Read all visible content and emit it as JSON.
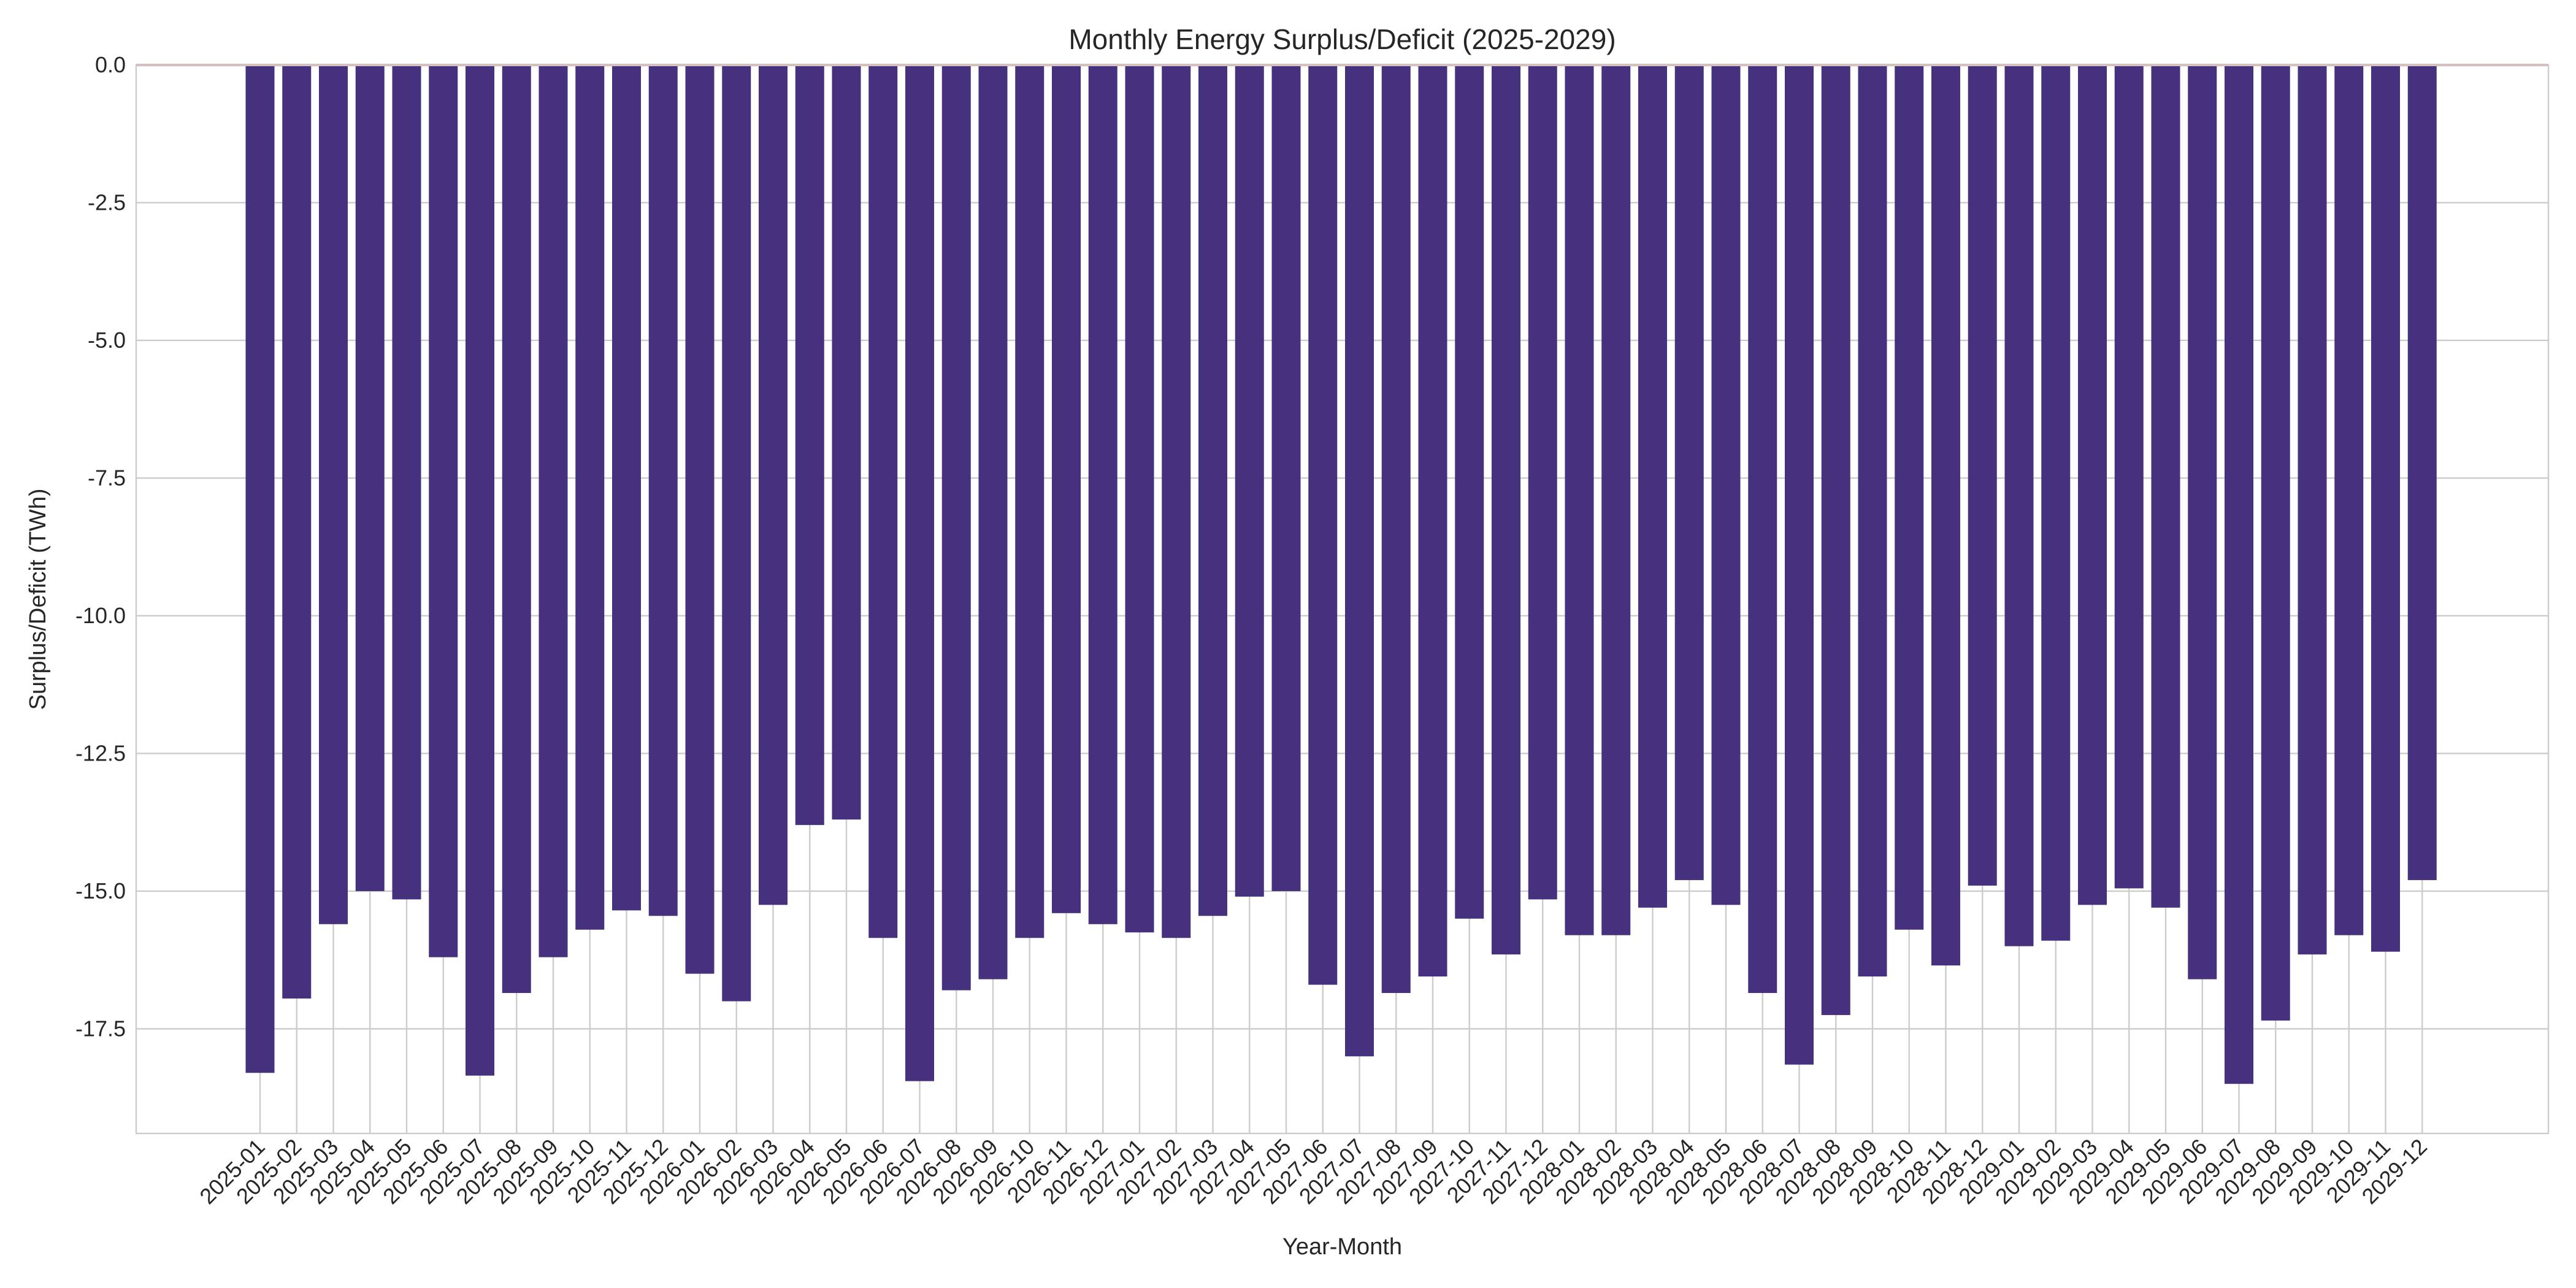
{
  "chart_data": {
    "type": "bar",
    "title": "Monthly Energy Surplus/Deficit (2025-2029)",
    "xlabel": "Year-Month",
    "ylabel": "Surplus/Deficit (TWh)",
    "ylim": [
      -19.4,
      0
    ],
    "yticks": [
      0.0,
      -2.5,
      -5.0,
      -7.5,
      -10.0,
      -12.5,
      -15.0,
      -17.5
    ],
    "ytick_labels": [
      "0.0",
      "-2.5",
      "-5.0",
      "-7.5",
      "-10.0",
      "-12.5",
      "-15.0",
      "-17.5"
    ],
    "grid": true,
    "reference_line": 0,
    "colors": {
      "bar": "#45317e",
      "reference_line": "#dba8a8",
      "grid": "#cccccc",
      "text": "#262626"
    },
    "categories": [
      "2025-01",
      "2025-02",
      "2025-03",
      "2025-04",
      "2025-05",
      "2025-06",
      "2025-07",
      "2025-08",
      "2025-09",
      "2025-10",
      "2025-11",
      "2025-12",
      "2026-01",
      "2026-02",
      "2026-03",
      "2026-04",
      "2026-05",
      "2026-06",
      "2026-07",
      "2026-08",
      "2026-09",
      "2026-10",
      "2026-11",
      "2026-12",
      "2027-01",
      "2027-02",
      "2027-03",
      "2027-04",
      "2027-05",
      "2027-06",
      "2027-07",
      "2027-08",
      "2027-09",
      "2027-10",
      "2027-11",
      "2027-12",
      "2028-01",
      "2028-02",
      "2028-03",
      "2028-04",
      "2028-05",
      "2028-06",
      "2028-07",
      "2028-08",
      "2028-09",
      "2028-10",
      "2028-11",
      "2028-12",
      "2029-01",
      "2029-02",
      "2029-03",
      "2029-04",
      "2029-05",
      "2029-06",
      "2029-07",
      "2029-08",
      "2029-09",
      "2029-10",
      "2029-11",
      "2029-12"
    ],
    "values": [
      -18.3,
      -16.95,
      -15.6,
      -15.0,
      -15.15,
      -16.2,
      -18.35,
      -16.85,
      -16.2,
      -15.7,
      -15.35,
      -15.45,
      -16.5,
      -17.0,
      -15.25,
      -13.8,
      -13.7,
      -15.85,
      -18.45,
      -16.8,
      -16.6,
      -15.85,
      -15.4,
      -15.6,
      -15.75,
      -15.85,
      -15.45,
      -15.1,
      -15.0,
      -16.7,
      -18.0,
      -16.85,
      -16.55,
      -15.5,
      -16.15,
      -15.15,
      -15.8,
      -15.8,
      -15.3,
      -14.8,
      -15.25,
      -16.85,
      -18.15,
      -17.25,
      -16.55,
      -15.7,
      -16.35,
      -14.9,
      -16.0,
      -15.9,
      -15.25,
      -14.95,
      -15.3,
      -16.6,
      -18.5,
      -17.35,
      -16.15,
      -15.8,
      -16.1,
      -14.8
    ]
  }
}
